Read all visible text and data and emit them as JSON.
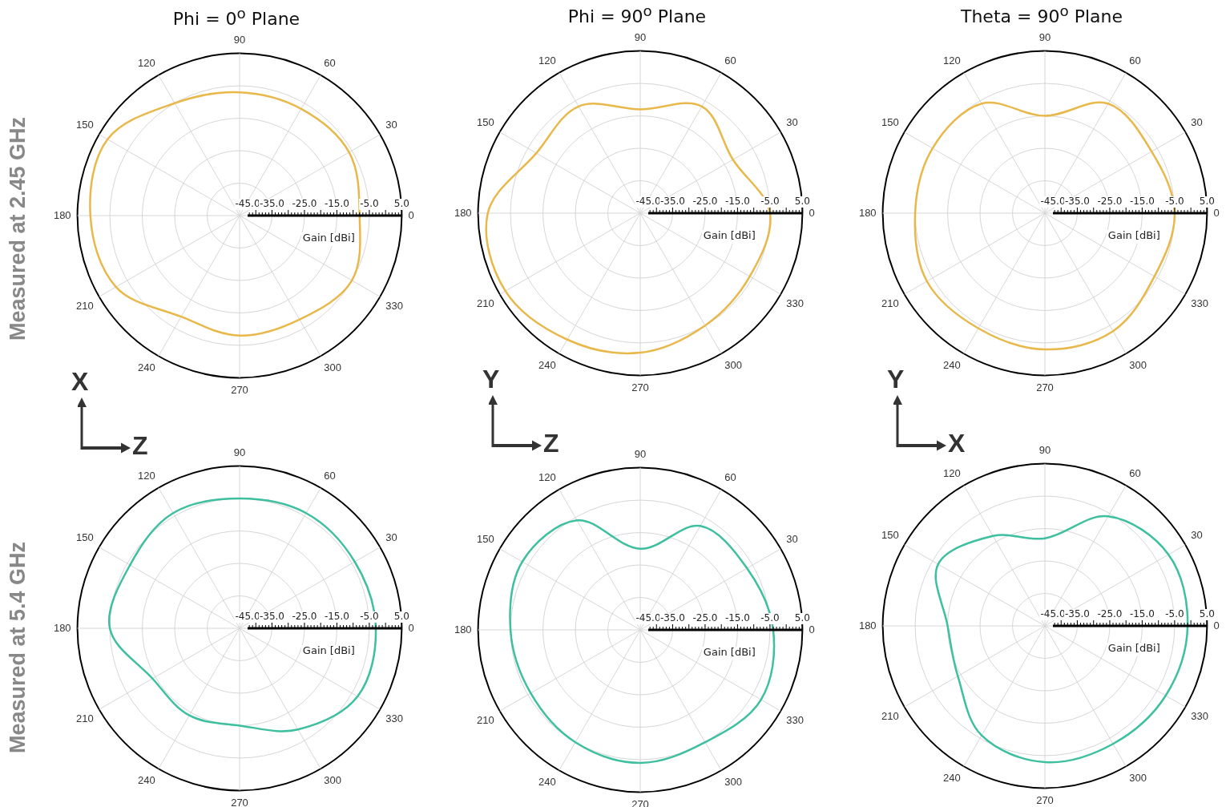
{
  "chart_data": [
    {
      "type": "radar",
      "title": "Phi = 0$^{o}$ Plane",
      "ylabel": "Gain [dBi]",
      "annotations": [
        "Measured at 2.45 GHz",
        "X",
        "Z"
      ],
      "categories": [
        "90",
        "60",
        "30",
        "0",
        "330",
        "300",
        "270",
        "240",
        "210",
        "180",
        "150",
        "120"
      ],
      "ylim": [
        -45,
        5
      ],
      "yticks": [
        {
          "value": -45,
          "label": "-45.0"
        },
        {
          "value": -35,
          "label": "-35.0"
        },
        {
          "value": -25,
          "label": "-25.0"
        },
        {
          "value": -15,
          "label": "-15.0"
        },
        {
          "value": -5,
          "label": "-5.0"
        },
        {
          "value": 5,
          "label": "5.0"
        }
      ],
      "grid": true,
      "marker": "none",
      "series": [
        {
          "color": "#e8b84a",
          "values": [
            -7,
            -7,
            -6,
            -8,
            -5,
            -8,
            -8,
            -9,
            -1,
            1,
            2,
            -5
          ]
        }
      ]
    },
    {
      "type": "radar",
      "title": "Phi = 90$^{o}$ Plane",
      "ylabel": "Gain [dBi]",
      "annotations": [
        "Y",
        "Z"
      ],
      "categories": [
        "90",
        "60",
        "30",
        "0",
        "330",
        "300",
        "270",
        "240",
        "210",
        "180",
        "150",
        "120"
      ],
      "ylim": [
        -45,
        5
      ],
      "yticks": [
        {
          "value": -45,
          "label": "-45.0"
        },
        {
          "value": -35,
          "label": "-35.0"
        },
        {
          "value": -25,
          "label": "-25.0"
        },
        {
          "value": -15,
          "label": "-15.0"
        },
        {
          "value": -5,
          "label": "-5.0"
        },
        {
          "value": 5,
          "label": "5.0"
        }
      ],
      "grid": true,
      "marker": "none",
      "series": [
        {
          "color": "#e8b84a",
          "values": [
            -13,
            -7,
            -12,
            -5,
            -6,
            -5,
            -2,
            0,
            3,
            2,
            -8,
            -7
          ]
        }
      ]
    },
    {
      "type": "radar",
      "title": "Theta = 90$^{o}$ Plane",
      "ylabel": "Gain [dBi]",
      "annotations": [
        "Y",
        "X"
      ],
      "categories": [
        "90",
        "60",
        "30",
        "0",
        "330",
        "300",
        "270",
        "240",
        "210",
        "180",
        "150",
        "120"
      ],
      "ylim": [
        -45,
        5
      ],
      "yticks": [
        {
          "value": -45,
          "label": "-45.0"
        },
        {
          "value": -35,
          "label": "-35.0"
        },
        {
          "value": -25,
          "label": "-25.0"
        },
        {
          "value": -15,
          "label": "-15.0"
        },
        {
          "value": -5,
          "label": "-5.0"
        },
        {
          "value": 5,
          "label": "5.0"
        }
      ],
      "grid": true,
      "marker": "none",
      "series": [
        {
          "color": "#e8b84a",
          "values": [
            -15,
            -6,
            -7,
            -5,
            -6,
            -3,
            -3,
            -4,
            -3,
            -5,
            -5,
            -6
          ]
        }
      ]
    },
    {
      "type": "radar",
      "ylabel": "Gain [dBi]",
      "annotations": [
        "Measured at 5.4 GHz"
      ],
      "categories": [
        "90",
        "60",
        "30",
        "0",
        "330",
        "300",
        "270",
        "240",
        "210",
        "180",
        "150",
        "120"
      ],
      "ylim": [
        -45,
        5
      ],
      "yticks": [
        {
          "value": -45,
          "label": "-45.0"
        },
        {
          "value": -35,
          "label": "-35.0"
        },
        {
          "value": -25,
          "label": "-25.0"
        },
        {
          "value": -15,
          "label": "-15.0"
        },
        {
          "value": -5,
          "label": "-5.0"
        },
        {
          "value": 5,
          "label": "5.0"
        }
      ],
      "grid": true,
      "marker": "none",
      "series": [
        {
          "color": "#3dbfa0",
          "values": [
            -5,
            -4,
            -4,
            -3,
            -3,
            -9,
            -15,
            -14,
            -14,
            -5,
            -6,
            -4
          ]
        }
      ]
    },
    {
      "type": "radar",
      "ylabel": "Gain [dBi]",
      "categories": [
        "90",
        "60",
        "30",
        "0",
        "330",
        "300",
        "270",
        "240",
        "210",
        "180",
        "150",
        "120"
      ],
      "ylim": [
        -45,
        5
      ],
      "yticks": [
        {
          "value": -45,
          "label": "-45.0"
        },
        {
          "value": -35,
          "label": "-35.0"
        },
        {
          "value": -25,
          "label": "-25.0"
        },
        {
          "value": -15,
          "label": "-15.0"
        },
        {
          "value": -5,
          "label": "-5.0"
        },
        {
          "value": 5,
          "label": "5.0"
        }
      ],
      "grid": true,
      "marker": "none",
      "series": [
        {
          "color": "#3dbfa0",
          "values": [
            -20,
            -8,
            -7,
            -4,
            -2,
            -5,
            -4,
            -5,
            -6,
            -5,
            -3,
            -6
          ]
        }
      ]
    },
    {
      "type": "radar",
      "ylabel": "Gain [dBi]",
      "categories": [
        "90",
        "60",
        "30",
        "0",
        "330",
        "300",
        "270",
        "240",
        "210",
        "180",
        "150",
        "120"
      ],
      "ylim": [
        -45,
        5
      ],
      "yticks": [
        {
          "value": -45,
          "label": "-45.0"
        },
        {
          "value": -35,
          "label": "-35.0"
        },
        {
          "value": -25,
          "label": "-25.0"
        },
        {
          "value": -15,
          "label": "-15.0"
        },
        {
          "value": -5,
          "label": "-5.0"
        },
        {
          "value": 5,
          "label": "5.0"
        }
      ],
      "grid": true,
      "marker": "none",
      "series": [
        {
          "color": "#3dbfa0",
          "values": [
            -18,
            -6,
            -1,
            -1,
            -2,
            -3,
            -3,
            -6,
            -14,
            -15,
            -7,
            -13
          ]
        }
      ]
    }
  ]
}
